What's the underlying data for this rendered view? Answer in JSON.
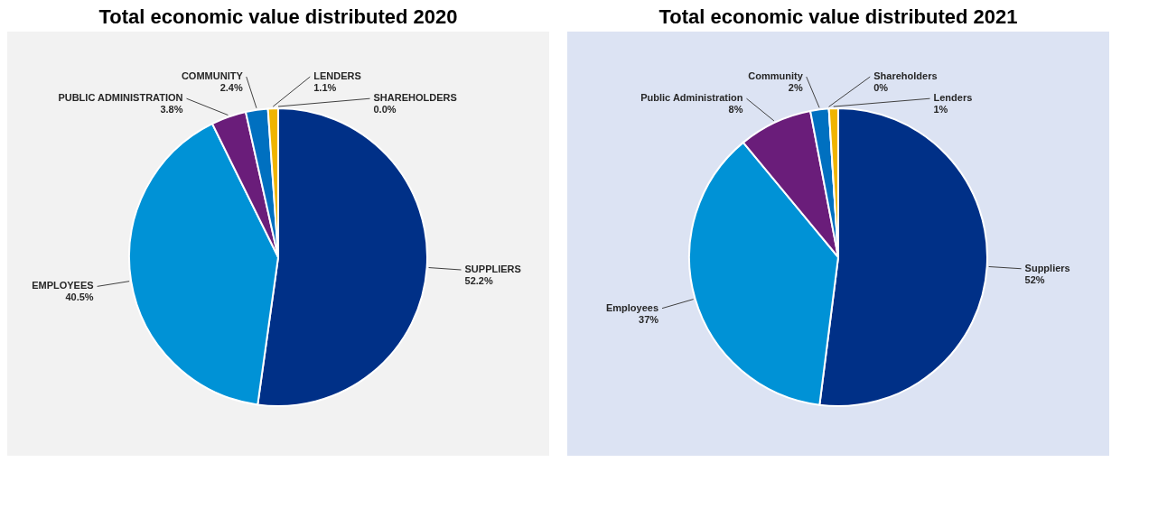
{
  "chart_data": [
    {
      "type": "pie",
      "title": "Total economic value distributed 2020",
      "categories": [
        "SUPPLIERS",
        "EMPLOYEES",
        "PUBLIC ADMINISTRATION",
        "COMMUNITY",
        "LENDERS",
        "SHAREHOLDERS"
      ],
      "values": [
        52.2,
        40.5,
        3.8,
        2.4,
        1.1,
        0.0
      ],
      "value_labels": [
        "52.2%",
        "40.5%",
        "3.8%",
        "2.4%",
        "1.1%",
        "0.0%"
      ],
      "colors": [
        "#003087",
        "#0092d6",
        "#6a1d7a",
        "#0070c0",
        "#f0b400",
        "#8c8c8c"
      ],
      "legend": false
    },
    {
      "type": "pie",
      "title": "Total economic value distributed 2021",
      "categories": [
        "Suppliers",
        "Employees",
        "Public Administration",
        "Community",
        "Shareholders",
        "Lenders"
      ],
      "values": [
        52,
        37,
        8,
        2,
        0,
        1
      ],
      "value_labels": [
        "52%",
        "37%",
        "8%",
        "2%",
        "0%",
        "1%"
      ],
      "colors": [
        "#003087",
        "#0092d6",
        "#6a1d7a",
        "#0070c0",
        "#8c8c8c",
        "#f0b400"
      ],
      "legend": false
    }
  ]
}
